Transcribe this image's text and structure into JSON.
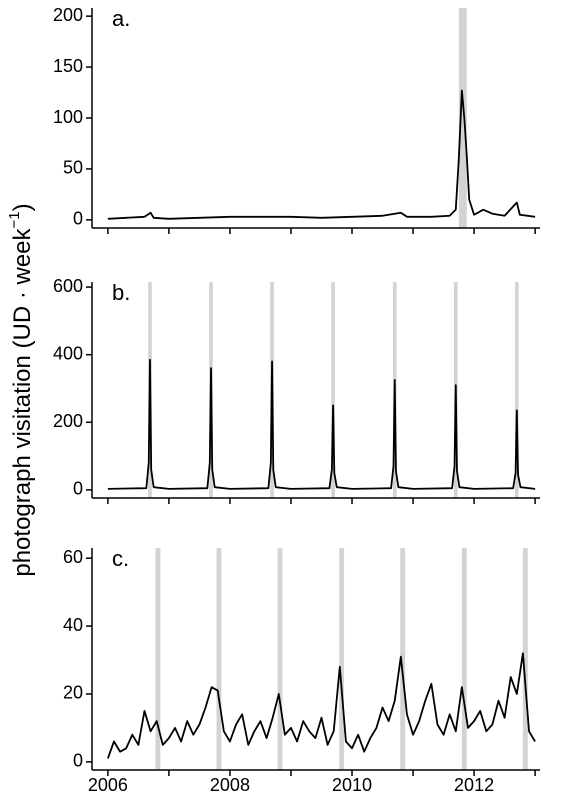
{
  "chart_data": [
    {
      "type": "line",
      "panel_label": "a.",
      "color": "#000000",
      "shade_color": "#d3d3d3",
      "xlim": [
        2005.74,
        2013.08
      ],
      "xticks": [
        2006,
        2007,
        2008,
        2009,
        2010,
        2011,
        2012,
        2013
      ],
      "show_xtick_labels": false,
      "ylim": [
        -8,
        208
      ],
      "yticks": [
        0,
        50,
        100,
        150,
        200
      ],
      "shaded_spans": [
        [
          2011.75,
          2011.88
        ]
      ],
      "x": [
        2006.0,
        2006.3,
        2006.6,
        2006.7,
        2006.75,
        2007.0,
        2007.5,
        2008.0,
        2008.5,
        2009.0,
        2009.5,
        2010.0,
        2010.5,
        2010.8,
        2010.9,
        2011.3,
        2011.6,
        2011.7,
        2011.75,
        2011.8,
        2011.84,
        2011.88,
        2011.92,
        2012.0,
        2012.15,
        2012.3,
        2012.5,
        2012.7,
        2012.75,
        2013.0
      ],
      "values": [
        1,
        2,
        3,
        7,
        2,
        1,
        2,
        3,
        3,
        3,
        2,
        3,
        4,
        7,
        3,
        3,
        4,
        10,
        60,
        127,
        100,
        63,
        20,
        5,
        10,
        6,
        4,
        17,
        5,
        3
      ]
    },
    {
      "type": "line",
      "panel_label": "b.",
      "color": "#000000",
      "shade_color": "#d3d3d3",
      "ylabel": "photograph visitation (UD · week",
      "ylabel_superscript": "−1",
      "ylabel_end": ")",
      "xlim": [
        2005.74,
        2013.08
      ],
      "xticks": [
        2006,
        2007,
        2008,
        2009,
        2010,
        2011,
        2012,
        2013
      ],
      "show_xtick_labels": false,
      "ylim": [
        -24,
        615
      ],
      "yticks": [
        0,
        200,
        400,
        600
      ],
      "shaded_spans": [
        [
          2006.66,
          2006.72
        ],
        [
          2007.66,
          2007.72
        ],
        [
          2008.66,
          2008.72
        ],
        [
          2009.66,
          2009.72
        ],
        [
          2010.67,
          2010.73
        ],
        [
          2011.67,
          2011.73
        ],
        [
          2012.67,
          2012.73
        ]
      ],
      "x": [
        2006.0,
        2006.63,
        2006.67,
        2006.69,
        2006.71,
        2006.75,
        2007.0,
        2007.63,
        2007.67,
        2007.69,
        2007.71,
        2007.75,
        2008.0,
        2008.63,
        2008.67,
        2008.69,
        2008.71,
        2008.75,
        2009.0,
        2009.63,
        2009.67,
        2009.69,
        2009.71,
        2009.75,
        2010.0,
        2010.64,
        2010.68,
        2010.7,
        2010.72,
        2010.76,
        2011.0,
        2011.64,
        2011.68,
        2011.7,
        2011.72,
        2011.76,
        2012.0,
        2012.64,
        2012.68,
        2012.7,
        2012.72,
        2012.76,
        2013.0
      ],
      "values": [
        3,
        5,
        80,
        385,
        60,
        8,
        3,
        5,
        80,
        360,
        60,
        8,
        3,
        5,
        80,
        380,
        60,
        8,
        3,
        5,
        60,
        250,
        50,
        8,
        3,
        5,
        70,
        325,
        55,
        8,
        3,
        5,
        70,
        310,
        55,
        8,
        3,
        5,
        50,
        235,
        45,
        8,
        3
      ]
    },
    {
      "type": "line",
      "panel_label": "c.",
      "color": "#000000",
      "shade_color": "#d3d3d3",
      "xlim": [
        2005.74,
        2013.08
      ],
      "xticks": [
        2006,
        2007,
        2008,
        2009,
        2010,
        2011,
        2012,
        2013
      ],
      "show_xtick_labels": true,
      "xtick_labels": [
        {
          "value": 2006,
          "label": "2006"
        },
        {
          "value": 2008,
          "label": "2008"
        },
        {
          "value": 2010,
          "label": "2010"
        },
        {
          "value": 2012,
          "label": "2012"
        }
      ],
      "ylim": [
        -2.4,
        63
      ],
      "yticks": [
        0,
        20,
        40,
        60
      ],
      "shaded_spans": [
        [
          2006.78,
          2006.86
        ],
        [
          2007.78,
          2007.86
        ],
        [
          2008.78,
          2008.86
        ],
        [
          2009.79,
          2009.87
        ],
        [
          2010.79,
          2010.87
        ],
        [
          2011.8,
          2011.88
        ],
        [
          2012.8,
          2012.88
        ]
      ],
      "x": [
        2006.0,
        2006.1,
        2006.2,
        2006.3,
        2006.4,
        2006.5,
        2006.6,
        2006.7,
        2006.8,
        2006.9,
        2007.0,
        2007.1,
        2007.2,
        2007.3,
        2007.4,
        2007.5,
        2007.6,
        2007.7,
        2007.8,
        2007.9,
        2008.0,
        2008.1,
        2008.2,
        2008.3,
        2008.4,
        2008.5,
        2008.6,
        2008.7,
        2008.8,
        2008.9,
        2009.0,
        2009.1,
        2009.2,
        2009.3,
        2009.4,
        2009.5,
        2009.6,
        2009.7,
        2009.8,
        2009.9,
        2010.0,
        2010.1,
        2010.2,
        2010.3,
        2010.4,
        2010.5,
        2010.6,
        2010.7,
        2010.8,
        2010.9,
        2011.0,
        2011.1,
        2011.2,
        2011.3,
        2011.4,
        2011.5,
        2011.6,
        2011.7,
        2011.8,
        2011.9,
        2012.0,
        2012.1,
        2012.2,
        2012.3,
        2012.4,
        2012.5,
        2012.6,
        2012.7,
        2012.8,
        2012.9,
        2013.0
      ],
      "values": [
        1,
        6,
        3,
        4,
        8,
        5,
        15,
        9,
        12,
        5,
        7,
        10,
        6,
        12,
        8,
        11,
        16,
        22,
        21,
        9,
        6,
        11,
        14,
        5,
        9,
        12,
        7,
        13,
        20,
        8,
        10,
        6,
        12,
        9,
        7,
        13,
        5,
        9,
        28,
        6,
        4,
        8,
        3,
        7,
        10,
        16,
        12,
        18,
        31,
        14,
        8,
        12,
        18,
        23,
        11,
        8,
        14,
        9,
        22,
        10,
        12,
        15,
        9,
        11,
        18,
        13,
        25,
        20,
        32,
        9,
        6
      ]
    }
  ]
}
